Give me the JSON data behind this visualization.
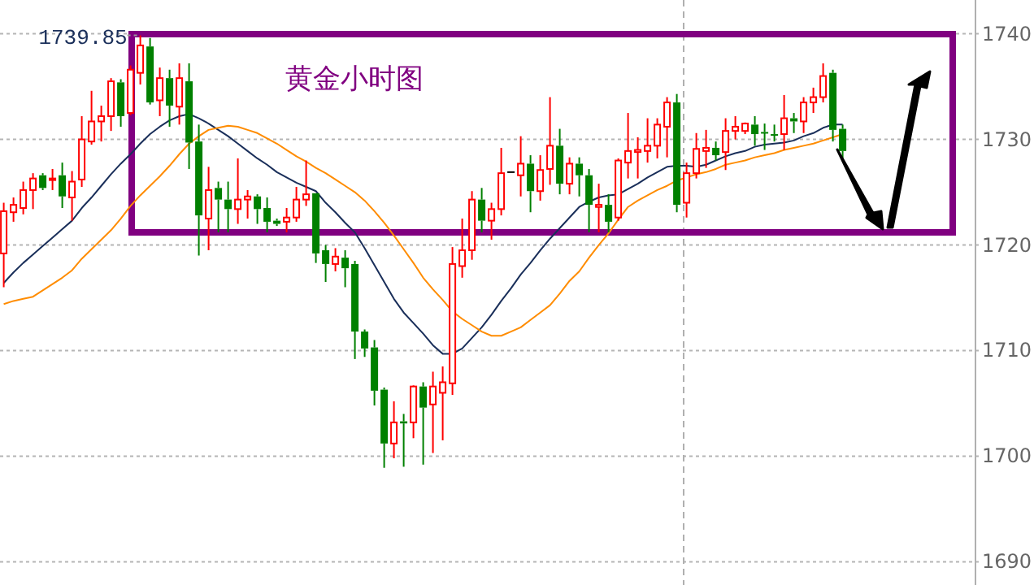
{
  "chart_data": {
    "type": "candlestick",
    "title": "黄金小时图",
    "categories": [
      null,
      null,
      null,
      null,
      null,
      null,
      null,
      null,
      null,
      null,
      null,
      null,
      null,
      null,
      null,
      null,
      null,
      null,
      null,
      null,
      null,
      null,
      null,
      null,
      null,
      null,
      null,
      null,
      null,
      null,
      null,
      null,
      null,
      null,
      null,
      null,
      null,
      null,
      null,
      null,
      null,
      null,
      null,
      null,
      null,
      null,
      null,
      null,
      null,
      null,
      null,
      null,
      null,
      null,
      null,
      null,
      null,
      null,
      null,
      null,
      null,
      null,
      null,
      null,
      null,
      null,
      null,
      null,
      null,
      null,
      null,
      null,
      null,
      null,
      null,
      null,
      null,
      null,
      null,
      null,
      null,
      null,
      null,
      null,
      null,
      null,
      null
    ],
    "ohlc": [
      [
        1719.2,
        1724,
        1716,
        1723.2
      ],
      [
        1723.1,
        1724.5,
        1722.2,
        1723.8
      ],
      [
        1723.5,
        1726,
        1722.9,
        1725.2
      ],
      [
        1725.2,
        1726.8,
        1723.4,
        1726.3
      ],
      [
        1726.6,
        1726.8,
        1725.2,
        1725.4
      ],
      [
        1726.2,
        1727.2,
        1725.2,
        1726.3
      ],
      [
        1726.6,
        1727.8,
        1723.5,
        1724.6
      ],
      [
        1724.5,
        1727,
        1722.3,
        1726
      ],
      [
        1726.2,
        1732.2,
        1725.5,
        1730
      ],
      [
        1729.8,
        1734.6,
        1729.5,
        1731.7
      ],
      [
        1731.7,
        1733.2,
        1729.8,
        1732.2
      ],
      [
        1732.2,
        1735.8,
        1730.8,
        1735.5
      ],
      [
        1735.4,
        1735.7,
        1731.2,
        1732.2
      ],
      [
        1732.5,
        1737,
        1732.3,
        1736.6
      ],
      [
        1736.3,
        1739.85,
        1735.2,
        1738.9
      ],
      [
        1738.8,
        1739.6,
        1733.3,
        1733.5
      ],
      [
        1733.7,
        1736.8,
        1732.2,
        1735.8
      ],
      [
        1735.8,
        1736.6,
        1731.2,
        1733.2
      ],
      [
        1733.1,
        1737.2,
        1731.4,
        1735.8
      ],
      [
        1735.5,
        1737.2,
        1727.2,
        1729.7
      ],
      [
        1729.8,
        1731.4,
        1719,
        1722.8
      ],
      [
        1722.5,
        1727.4,
        1719.5,
        1725.2
      ],
      [
        1725.4,
        1726,
        1721.2,
        1724.3
      ],
      [
        1724.3,
        1726,
        1721.2,
        1723.4
      ],
      [
        1723.4,
        1728.2,
        1722,
        1724.3
      ],
      [
        1724.3,
        1725.2,
        1722.5,
        1724.6
      ],
      [
        1724.6,
        1724.8,
        1722,
        1723.4
      ],
      [
        1723.5,
        1724.5,
        1721.2,
        1722.2
      ],
      [
        1722.3,
        1722.5,
        1721.8,
        1722
      ],
      [
        1722.2,
        1723.5,
        1721.2,
        1722.6
      ],
      [
        1722.6,
        1725.5,
        1722.2,
        1724.3
      ],
      [
        1724.3,
        1728,
        1723.7,
        1724.8
      ],
      [
        1724.9,
        1724.9,
        1718.3,
        1719.2
      ],
      [
        1719.5,
        1720,
        1716.5,
        1718.2
      ],
      [
        1718.2,
        1719.7,
        1717.5,
        1718.9
      ],
      [
        1718.8,
        1719.5,
        1716,
        1717.8
      ],
      [
        1718.2,
        1718.5,
        1709.2,
        1711.8
      ],
      [
        1711.8,
        1712,
        1709.4,
        1710.2
      ],
      [
        1710.3,
        1711,
        1704.8,
        1706.2
      ],
      [
        1706.3,
        1706.5,
        1698.9,
        1701.2
      ],
      [
        1701.2,
        1705.2,
        1699.8,
        1703.2
      ],
      [
        1703.3,
        1704,
        1699,
        1703.1
      ],
      [
        1703.2,
        1706.7,
        1701.7,
        1706.6
      ],
      [
        1706.6,
        1707,
        1699.2,
        1704.6
      ],
      [
        1704.9,
        1708,
        1700.3,
        1706.6
      ],
      [
        1706,
        1708.5,
        1701.5,
        1707
      ],
      [
        1706.9,
        1719.8,
        1705.8,
        1718.2
      ],
      [
        1718,
        1722.5,
        1716.9,
        1719.5
      ],
      [
        1719.5,
        1725.1,
        1718.6,
        1724.3
      ],
      [
        1724.3,
        1725.4,
        1721.2,
        1722.3
      ],
      [
        1722.3,
        1724,
        1720.5,
        1723.4
      ],
      [
        1723.4,
        1729.2,
        1722.8,
        1726.8
      ],
      [
        1726.9,
        1726.9,
        1726.9,
        1726.9
      ],
      [
        1726.6,
        1730.3,
        1724.6,
        1727.7
      ],
      [
        1727.7,
        1728.5,
        1723.1,
        1725.1
      ],
      [
        1725.1,
        1728.5,
        1724.2,
        1727.1
      ],
      [
        1727.2,
        1734,
        1725.7,
        1729.4
      ],
      [
        1729.4,
        1731,
        1724.8,
        1725.8
      ],
      [
        1725.8,
        1728.3,
        1724.8,
        1727.7
      ],
      [
        1727.7,
        1728.3,
        1724.6,
        1726.6
      ],
      [
        1726.6,
        1727.2,
        1721.2,
        1723.8
      ],
      [
        1723.6,
        1725.8,
        1721.2,
        1723.8
      ],
      [
        1723.8,
        1724.8,
        1721.2,
        1722.2
      ],
      [
        1722.6,
        1728.2,
        1722.3,
        1728
      ],
      [
        1727.8,
        1732.5,
        1726.3,
        1728.9
      ],
      [
        1728.8,
        1730.2,
        1726.3,
        1729
      ],
      [
        1728.9,
        1732,
        1727.8,
        1729.4
      ],
      [
        1729.4,
        1732,
        1728.2,
        1731.4
      ],
      [
        1731.2,
        1734,
        1728.3,
        1733.5
      ],
      [
        1733.5,
        1734.3,
        1723.1,
        1723.8
      ],
      [
        1724,
        1727.8,
        1722.6,
        1726.8
      ],
      [
        1726.8,
        1730.6,
        1726.3,
        1729.1
      ],
      [
        1728.9,
        1730.9,
        1727.3,
        1729.2
      ],
      [
        1729.2,
        1729.8,
        1728,
        1728.5
      ],
      [
        1728.8,
        1732,
        1727.1,
        1730.8
      ],
      [
        1730.8,
        1732.2,
        1730,
        1731.2
      ],
      [
        1730.8,
        1731.6,
        1730.5,
        1731.5
      ],
      [
        1731.4,
        1732.2,
        1729.4,
        1730.5
      ],
      [
        1730.7,
        1731.5,
        1729,
        1730.6
      ],
      [
        1730.5,
        1731.4,
        1729.8,
        1730.4
      ],
      [
        1730.5,
        1734.2,
        1729,
        1732
      ],
      [
        1732,
        1732.5,
        1730.6,
        1731.7
      ],
      [
        1731.7,
        1734,
        1730.6,
        1733.5
      ],
      [
        1733.5,
        1734.9,
        1732.5,
        1734
      ],
      [
        1734,
        1737.2,
        1733.5,
        1736
      ],
      [
        1736.3,
        1736.6,
        1729.8,
        1730.9
      ],
      [
        1731,
        1731.4,
        1728.2,
        1728.9
      ]
    ],
    "series": [
      {
        "type": "line",
        "color": "#1a2f5a",
        "values": [
          1716.4,
          1717.4,
          1718.3,
          1719.1,
          1719.9,
          1720.7,
          1721.5,
          1722.3,
          1723.5,
          1724.5,
          1725.6,
          1726.7,
          1727.7,
          1728.6,
          1729.6,
          1730.5,
          1731.2,
          1731.8,
          1732.2,
          1732.4,
          1732,
          1731.5,
          1730.9,
          1730.3,
          1729.6,
          1728.9,
          1728.2,
          1727.6,
          1726.9,
          1726.4,
          1725.9,
          1725.5,
          1725.1,
          1724,
          1723.1,
          1722.1,
          1721.2,
          1719.7,
          1718.1,
          1716.5,
          1714.9,
          1713.6,
          1712.6,
          1711.6,
          1710.5,
          1709.7,
          1709.7,
          1710.2,
          1711.2,
          1712.2,
          1713.4,
          1714.7,
          1715.9,
          1717.2,
          1718.3,
          1719.5,
          1720.6,
          1721.6,
          1722.6,
          1723.6,
          1724.1,
          1724.5,
          1724.7,
          1724.8,
          1725.3,
          1725.8,
          1726.4,
          1726.9,
          1727.4,
          1727.5,
          1727.5,
          1727.4,
          1727.6,
          1728,
          1728.4,
          1728.7,
          1728.9,
          1729.3,
          1729.5,
          1729.6,
          1729.7,
          1729.9,
          1730.3,
          1730.6,
          1731.1,
          1731.4,
          1731.4
        ]
      },
      {
        "type": "line",
        "color": "#ff8c00",
        "values": [
          1714.4,
          1714.7,
          1714.9,
          1715.1,
          1715.7,
          1716.3,
          1716.9,
          1717.6,
          1718.7,
          1719.6,
          1720.5,
          1721.4,
          1722.5,
          1723.7,
          1724.7,
          1725.6,
          1726.5,
          1727.5,
          1728.6,
          1729.6,
          1730.3,
          1730.9,
          1731.1,
          1731.3,
          1731.2,
          1730.9,
          1730.6,
          1730.1,
          1729.6,
          1729,
          1728.4,
          1727.9,
          1727.3,
          1726.8,
          1726.2,
          1725.6,
          1725,
          1724.2,
          1723.2,
          1722.1,
          1720.9,
          1719.6,
          1718.3,
          1716.9,
          1715.8,
          1714.8,
          1713.7,
          1713,
          1712.4,
          1711.8,
          1711.4,
          1711.4,
          1711.8,
          1712.2,
          1712.9,
          1713.6,
          1714.3,
          1715.4,
          1716.6,
          1717.5,
          1718.8,
          1720,
          1721.1,
          1722.4,
          1723.6,
          1724.2,
          1724.7,
          1725.2,
          1725.6,
          1726.1,
          1726.4,
          1726.7,
          1726.9,
          1727.2,
          1727.6,
          1727.8,
          1728,
          1728.3,
          1728.5,
          1728.7,
          1729,
          1729.2,
          1729.4,
          1729.6,
          1729.9,
          1730.2,
          1730.5
        ]
      }
    ],
    "ylim": [
      1687.8,
      1743.2
    ],
    "yticks": [
      1690,
      1700,
      1710,
      1720,
      1730,
      1740
    ],
    "tick_labels": "y",
    "grid": "y",
    "annotations": [
      "1739.85"
    ]
  }
}
